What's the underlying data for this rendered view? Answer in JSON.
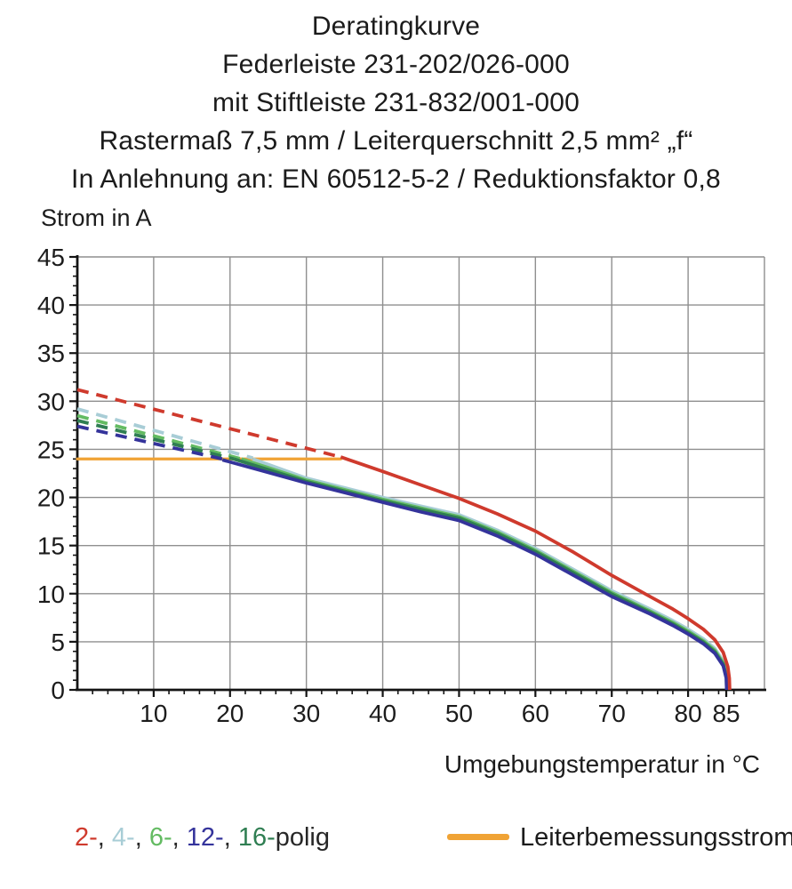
{
  "title": {
    "lines": [
      "Deratingkurve",
      "Federleiste 231-202/026-000",
      "mit Stiftleiste 231-832/001-000",
      "Rastermaß 7,5 mm / Leiterquerschnitt 2,5 mm² „f“",
      "In Anlehnung an: EN 60512-5-2 / Reduktionsfaktor 0,8"
    ]
  },
  "axes": {
    "y": {
      "title": "Strom in A"
    },
    "x": {
      "title": "Umgebungstemperatur in °C"
    }
  },
  "legend": {
    "poles": [
      {
        "label": "2-",
        "color": "#cf3a2d"
      },
      {
        "label": "4-",
        "color": "#a8cdd6"
      },
      {
        "label": "6-",
        "color": "#63bb62"
      },
      {
        "label": "12-",
        "color": "#34339b"
      },
      {
        "label": "16-",
        "color": "#2f7e52"
      }
    ],
    "separator": ", ",
    "suffix": "polig",
    "text_color": "#272727",
    "rated_label": "Leiterbemessungsstrom",
    "rated_color": "#f0a335"
  },
  "chart_data": {
    "type": "line",
    "title": "Deratingkurve",
    "xlabel": "Umgebungstemperatur in °C",
    "ylabel": "Strom in A",
    "xlim": [
      0,
      90
    ],
    "ylim": [
      0,
      45
    ],
    "grid": true,
    "x_tick_labels": [
      10,
      20,
      30,
      40,
      50,
      60,
      70,
      80,
      85
    ],
    "y_tick_labels": [
      0,
      5,
      10,
      15,
      20,
      25,
      30,
      35,
      40,
      45
    ],
    "x_grid_step": 10,
    "y_grid_step": 5,
    "x_minor_step": 2,
    "y_minor_step": 1,
    "grid_color": "#8f8f8f",
    "axis_color": "#141414",
    "tick_label_color": "#1c1c1c",
    "rated_current": {
      "label": "Leiterbemessungsstrom",
      "value": 24,
      "x_start": 0,
      "x_end": 34.5,
      "color": "#f0a335"
    },
    "series": [
      {
        "name": "4-polig",
        "color": "#a8cdd6",
        "dashed": {
          "x": [
            0,
            23
          ],
          "y": [
            29.2,
            24.1
          ]
        },
        "solid": {
          "x": [
            23,
            30,
            35,
            40,
            45,
            50,
            55,
            60,
            65,
            70,
            75,
            78,
            80,
            82,
            83.5,
            84.6,
            85.1,
            85.15
          ],
          "y": [
            24.0,
            22.0,
            21.0,
            20.0,
            19.1,
            18.2,
            16.6,
            14.7,
            12.5,
            10.3,
            8.4,
            7.2,
            6.3,
            5.3,
            4.3,
            3.0,
            1.6,
            0
          ]
        }
      },
      {
        "name": "6-polig",
        "color": "#63bb62",
        "dashed": {
          "x": [
            0,
            21.5
          ],
          "y": [
            28.5,
            24.0
          ]
        },
        "solid": {
          "x": [
            21.5,
            30,
            40,
            45,
            50,
            55,
            60,
            65,
            70,
            75,
            78,
            80,
            82,
            83.5,
            84.6,
            85.05,
            85.1
          ],
          "y": [
            24.0,
            21.8,
            19.8,
            18.9,
            18.0,
            16.4,
            14.5,
            12.3,
            10.1,
            8.2,
            7.0,
            6.1,
            5.1,
            4.1,
            2.8,
            1.4,
            0
          ]
        }
      },
      {
        "name": "16-polig",
        "color": "#2f7e52",
        "dashed": {
          "x": [
            0,
            20.5
          ],
          "y": [
            28.0,
            24.0
          ]
        },
        "solid": {
          "x": [
            20.5,
            30,
            40,
            45,
            50,
            55,
            60,
            65,
            70,
            75,
            78,
            80,
            82,
            83.5,
            84.6,
            85.0,
            85.05
          ],
          "y": [
            24.0,
            21.65,
            19.65,
            18.75,
            17.85,
            16.25,
            14.35,
            12.15,
            9.95,
            8.05,
            6.85,
            5.95,
            4.95,
            3.95,
            2.65,
            1.3,
            0
          ]
        }
      },
      {
        "name": "12-polig",
        "color": "#34339b",
        "dashed": {
          "x": [
            0,
            19
          ],
          "y": [
            27.4,
            24.0
          ]
        },
        "solid": {
          "x": [
            19,
            25,
            30,
            40,
            45,
            50,
            55,
            60,
            65,
            70,
            75,
            78,
            80,
            82,
            83.5,
            84.6,
            85.0,
            85.05
          ],
          "y": [
            23.9,
            22.6,
            21.5,
            19.5,
            18.5,
            17.6,
            16.0,
            14.1,
            11.9,
            9.7,
            7.9,
            6.7,
            5.8,
            4.8,
            3.8,
            2.5,
            1.2,
            0
          ]
        }
      },
      {
        "name": "2-polig",
        "color": "#cf3a2d",
        "dashed": {
          "x": [
            0,
            34.5
          ],
          "y": [
            31.2,
            24.2
          ]
        },
        "solid": {
          "x": [
            34.5,
            40,
            45,
            50,
            55,
            60,
            65,
            70,
            75,
            78,
            80,
            82,
            83.5,
            84.6,
            85.2,
            85.4,
            85.45
          ],
          "y": [
            24.2,
            22.7,
            21.3,
            19.9,
            18.3,
            16.5,
            14.3,
            11.9,
            9.7,
            8.4,
            7.4,
            6.3,
            5.2,
            3.9,
            2.4,
            1.2,
            0
          ]
        }
      }
    ]
  }
}
